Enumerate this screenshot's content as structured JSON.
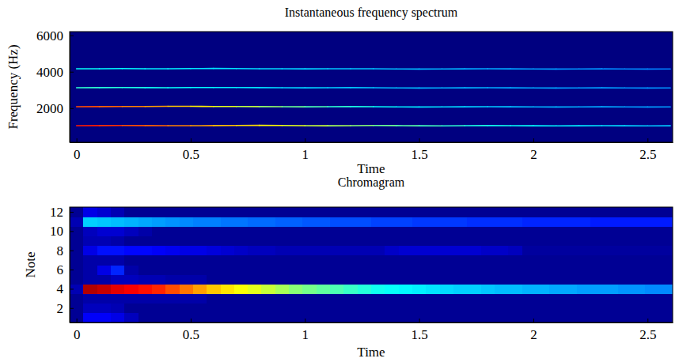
{
  "chart_data": [
    {
      "type": "line",
      "title": "Instantaneous frequency spectrum",
      "x_label": "Time",
      "y_label": "Frequency (Hz)",
      "x": [
        0,
        0.1,
        0.2,
        0.3,
        0.4,
        0.5,
        0.6,
        0.7,
        0.8,
        0.9,
        1,
        1.1,
        1.2,
        1.3,
        1.4,
        1.5,
        1.6,
        1.7,
        1.8,
        1.9,
        2,
        2.1,
        2.2,
        2.3,
        2.4,
        2.5,
        2.6
      ],
      "series": [
        {
          "values": [
            1040,
            1045,
            1050,
            1048,
            1042,
            1040,
            1045,
            1050,
            1055,
            1050,
            1040,
            1035,
            1040,
            1050,
            1045,
            1035,
            1030,
            1040,
            1045,
            1040,
            1035,
            1030,
            1035,
            1040,
            1035,
            1030,
            1035
          ],
          "levels": [
            0.85,
            0.83,
            0.8,
            0.78,
            0.75,
            0.72,
            0.69,
            0.66,
            0.63,
            0.6,
            0.57,
            0.54,
            0.51,
            0.48,
            0.46,
            0.44,
            0.42,
            0.4,
            0.39,
            0.38,
            0.37,
            0.36,
            0.35,
            0.34,
            0.33,
            0.32,
            0.31
          ]
        },
        {
          "values": [
            2080,
            2085,
            2090,
            2095,
            2100,
            2100,
            2095,
            2090,
            2085,
            2080,
            2075,
            2080,
            2085,
            2080,
            2070,
            2065,
            2070,
            2075,
            2080,
            2075,
            2070,
            2065,
            2070,
            2075,
            2070,
            2065,
            2070
          ],
          "levels": [
            0.8,
            0.78,
            0.75,
            0.72,
            0.68,
            0.64,
            0.6,
            0.56,
            0.52,
            0.48,
            0.45,
            0.42,
            0.4,
            0.38,
            0.36,
            0.35,
            0.34,
            0.33,
            0.32,
            0.31,
            0.3,
            0.3,
            0.29,
            0.29,
            0.28,
            0.28,
            0.27
          ]
        },
        {
          "values": [
            3120,
            3125,
            3130,
            3125,
            3120,
            3130,
            3135,
            3130,
            3125,
            3120,
            3115,
            3120,
            3125,
            3120,
            3110,
            3105,
            3110,
            3115,
            3120,
            3115,
            3110,
            3105,
            3110,
            3115,
            3110,
            3105,
            3110
          ],
          "levels": [
            0.42,
            0.41,
            0.4,
            0.39,
            0.38,
            0.37,
            0.36,
            0.35,
            0.34,
            0.33,
            0.33,
            0.32,
            0.32,
            0.31,
            0.31,
            0.3,
            0.3,
            0.3,
            0.29,
            0.29,
            0.29,
            0.28,
            0.28,
            0.28,
            0.27,
            0.27,
            0.27
          ]
        },
        {
          "values": [
            4160,
            4165,
            4170,
            4165,
            4160,
            4170,
            4180,
            4175,
            4165,
            4160,
            4155,
            4160,
            4165,
            4160,
            4150,
            4145,
            4150,
            4155,
            4160,
            4155,
            4150,
            4145,
            4150,
            4155,
            4150,
            4145,
            4150
          ],
          "levels": [
            0.38,
            0.37,
            0.37,
            0.36,
            0.36,
            0.35,
            0.35,
            0.34,
            0.34,
            0.33,
            0.33,
            0.32,
            0.32,
            0.31,
            0.31,
            0.3,
            0.3,
            0.29,
            0.29,
            0.28,
            0.28,
            0.27,
            0.27,
            0.26,
            0.26,
            0.25,
            0.25
          ]
        }
      ],
      "xlim": [
        -0.03,
        2.61
      ],
      "ylim": [
        130,
        6200
      ],
      "xticks": [
        0,
        0.5,
        1,
        1.5,
        2,
        2.5
      ],
      "yticks": [
        2000,
        4000,
        6000
      ],
      "clim": [
        0,
        1
      ]
    },
    {
      "type": "heatmap",
      "title": "Chromagram",
      "x_label": "Time",
      "y_label": "Note",
      "x": [
        0,
        0.06,
        0.12,
        0.18,
        0.24,
        0.3,
        0.36,
        0.42,
        0.48,
        0.54,
        0.6,
        0.66,
        0.72,
        0.78,
        0.84,
        0.9,
        0.96,
        1.02,
        1.08,
        1.14,
        1.2,
        1.26,
        1.32,
        1.38,
        1.44,
        1.5,
        1.56,
        1.62,
        1.68,
        1.74,
        1.8,
        1.86,
        1.92,
        1.98,
        2.04,
        2.1,
        2.16,
        2.22,
        2.28,
        2.34,
        2.4,
        2.46,
        2.52,
        2.58
      ],
      "y": [
        1,
        2,
        3,
        4,
        5,
        6,
        7,
        8,
        9,
        10,
        11,
        12
      ],
      "cells": [
        [
          0.02,
          0.12,
          0.12,
          0.1,
          0.06,
          0.02,
          0.02,
          0.02,
          0.02,
          0.02,
          0.02,
          0.02,
          0.02,
          0.02,
          0.02,
          0.02,
          0.02,
          0.02,
          0.02,
          0.02,
          0.02,
          0.02,
          0.02,
          0.02,
          0.02,
          0.02,
          0.02,
          0.02,
          0.02,
          0.02,
          0.02,
          0.02,
          0.02,
          0.02,
          0.02,
          0.02,
          0.02,
          0.02,
          0.02,
          0.02,
          0.02,
          0.02,
          0.02,
          0.02
        ],
        [
          0.02,
          0.06,
          0.06,
          0.05,
          0.02,
          0.02,
          0.02,
          0.02,
          0.02,
          0.02,
          0.02,
          0.02,
          0.02,
          0.02,
          0.02,
          0.02,
          0.02,
          0.02,
          0.02,
          0.02,
          0.02,
          0.02,
          0.02,
          0.02,
          0.02,
          0.02,
          0.02,
          0.02,
          0.02,
          0.02,
          0.02,
          0.02,
          0.02,
          0.02,
          0.02,
          0.02,
          0.02,
          0.02,
          0.02,
          0.02,
          0.02,
          0.02,
          0.02,
          0.02
        ],
        [
          0.02,
          0.04,
          0.04,
          0.04,
          0.04,
          0.04,
          0.04,
          0.04,
          0.04,
          0.04,
          0.02,
          0.02,
          0.02,
          0.02,
          0.02,
          0.02,
          0.02,
          0.02,
          0.02,
          0.02,
          0.02,
          0.02,
          0.02,
          0.02,
          0.02,
          0.02,
          0.02,
          0.02,
          0.02,
          0.02,
          0.02,
          0.02,
          0.02,
          0.02,
          0.02,
          0.02,
          0.02,
          0.02,
          0.02,
          0.02,
          0.02,
          0.02,
          0.02,
          0.02
        ],
        [
          0.05,
          0.95,
          0.93,
          0.9,
          0.88,
          0.86,
          0.84,
          0.8,
          0.76,
          0.72,
          0.68,
          0.65,
          0.62,
          0.6,
          0.57,
          0.54,
          0.51,
          0.49,
          0.47,
          0.45,
          0.43,
          0.41,
          0.39,
          0.38,
          0.37,
          0.36,
          0.35,
          0.34,
          0.33,
          0.33,
          0.32,
          0.31,
          0.31,
          0.3,
          0.3,
          0.29,
          0.29,
          0.28,
          0.28,
          0.28,
          0.27,
          0.27,
          0.26,
          0.26
        ],
        [
          0.02,
          0.04,
          0.04,
          0.06,
          0.06,
          0.05,
          0.05,
          0.04,
          0.04,
          0.04,
          0.02,
          0.02,
          0.02,
          0.02,
          0.02,
          0.02,
          0.02,
          0.02,
          0.02,
          0.02,
          0.02,
          0.02,
          0.02,
          0.02,
          0.02,
          0.02,
          0.02,
          0.02,
          0.02,
          0.02,
          0.02,
          0.02,
          0.02,
          0.02,
          0.02,
          0.02,
          0.02,
          0.02,
          0.02,
          0.02,
          0.02,
          0.02,
          0.02,
          0.02
        ],
        [
          0.02,
          0.04,
          0.1,
          0.16,
          0.04,
          0.02,
          0.02,
          0.02,
          0.02,
          0.02,
          0.02,
          0.02,
          0.02,
          0.02,
          0.02,
          0.02,
          0.02,
          0.02,
          0.02,
          0.02,
          0.02,
          0.02,
          0.02,
          0.02,
          0.02,
          0.02,
          0.02,
          0.02,
          0.02,
          0.02,
          0.02,
          0.02,
          0.02,
          0.02,
          0.02,
          0.02,
          0.02,
          0.02,
          0.02,
          0.02,
          0.02,
          0.02,
          0.02,
          0.02
        ],
        [
          0.02,
          0.04,
          0.04,
          0.04,
          0.02,
          0.02,
          0.02,
          0.02,
          0.02,
          0.02,
          0.02,
          0.02,
          0.02,
          0.02,
          0.02,
          0.02,
          0.02,
          0.02,
          0.02,
          0.02,
          0.02,
          0.02,
          0.02,
          0.02,
          0.02,
          0.02,
          0.02,
          0.02,
          0.02,
          0.02,
          0.02,
          0.02,
          0.02,
          0.02,
          0.02,
          0.02,
          0.02,
          0.02,
          0.02,
          0.02,
          0.02,
          0.02,
          0.02,
          0.02
        ],
        [
          0.02,
          0.1,
          0.14,
          0.14,
          0.13,
          0.13,
          0.12,
          0.11,
          0.1,
          0.1,
          0.09,
          0.08,
          0.07,
          0.06,
          0.06,
          0.05,
          0.05,
          0.05,
          0.05,
          0.05,
          0.05,
          0.05,
          0.05,
          0.07,
          0.08,
          0.08,
          0.08,
          0.08,
          0.08,
          0.08,
          0.07,
          0.07,
          0.06,
          0.03,
          0.03,
          0.03,
          0.03,
          0.03,
          0.03,
          0.03,
          0.03,
          0.03,
          0.03,
          0.03
        ],
        [
          0.02,
          0.05,
          0.05,
          0.04,
          0.02,
          0.02,
          0.02,
          0.02,
          0.02,
          0.02,
          0.02,
          0.02,
          0.02,
          0.02,
          0.02,
          0.02,
          0.02,
          0.02,
          0.02,
          0.02,
          0.02,
          0.02,
          0.02,
          0.02,
          0.02,
          0.02,
          0.02,
          0.02,
          0.02,
          0.02,
          0.02,
          0.02,
          0.02,
          0.02,
          0.02,
          0.02,
          0.02,
          0.02,
          0.02,
          0.02,
          0.02,
          0.02,
          0.02,
          0.02
        ],
        [
          0.02,
          0.06,
          0.08,
          0.08,
          0.06,
          0.04,
          0.02,
          0.02,
          0.02,
          0.02,
          0.02,
          0.02,
          0.02,
          0.02,
          0.02,
          0.02,
          0.02,
          0.02,
          0.02,
          0.02,
          0.02,
          0.02,
          0.02,
          0.02,
          0.02,
          0.02,
          0.02,
          0.02,
          0.02,
          0.02,
          0.02,
          0.02,
          0.02,
          0.02,
          0.02,
          0.02,
          0.02,
          0.02,
          0.02,
          0.02,
          0.02,
          0.02,
          0.02,
          0.02
        ],
        [
          0.05,
          0.33,
          0.32,
          0.31,
          0.3,
          0.29,
          0.28,
          0.27,
          0.26,
          0.25,
          0.25,
          0.24,
          0.24,
          0.23,
          0.23,
          0.22,
          0.22,
          0.21,
          0.21,
          0.2,
          0.2,
          0.2,
          0.19,
          0.19,
          0.19,
          0.18,
          0.18,
          0.18,
          0.18,
          0.17,
          0.17,
          0.17,
          0.17,
          0.16,
          0.16,
          0.16,
          0.16,
          0.16,
          0.15,
          0.15,
          0.15,
          0.15,
          0.15,
          0.15
        ],
        [
          0.02,
          0.1,
          0.08,
          0.05,
          0.02,
          0.02,
          0.02,
          0.02,
          0.02,
          0.02,
          0.02,
          0.02,
          0.02,
          0.02,
          0.02,
          0.02,
          0.02,
          0.02,
          0.02,
          0.02,
          0.02,
          0.02,
          0.02,
          0.02,
          0.02,
          0.02,
          0.02,
          0.02,
          0.02,
          0.02,
          0.02,
          0.02,
          0.02,
          0.02,
          0.02,
          0.02,
          0.02,
          0.02,
          0.02,
          0.02,
          0.02,
          0.02,
          0.02,
          0.02
        ]
      ],
      "xlim": [
        -0.03,
        2.61
      ],
      "ylim": [
        0.5,
        12.5
      ],
      "xticks": [
        0,
        0.5,
        1,
        1.5,
        2,
        2.5
      ],
      "yticks": [
        2,
        4,
        6,
        8,
        10,
        12
      ],
      "clim": [
        0,
        1
      ]
    }
  ]
}
